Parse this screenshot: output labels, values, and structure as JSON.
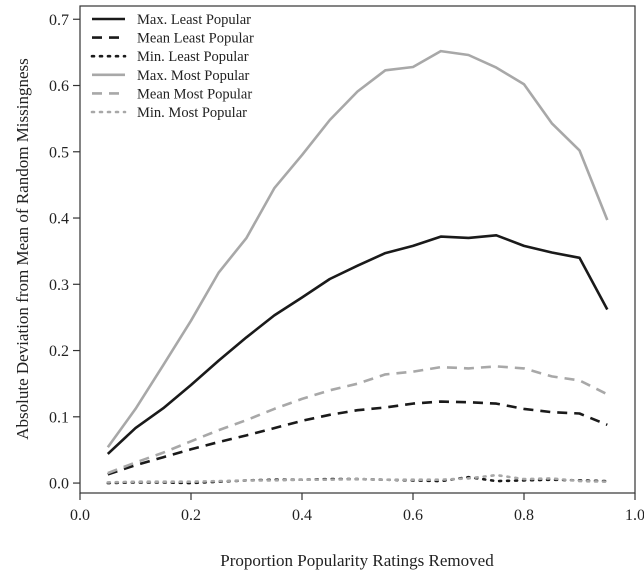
{
  "chart_data": {
    "type": "line",
    "title": "",
    "xlabel": "Proportion Popularity Ratings Removed",
    "ylabel": "Absolute Deviation from Mean of Random Missingness",
    "xlim": [
      0,
      1.0
    ],
    "ylim": [
      -0.015,
      0.72
    ],
    "x_ticks": [
      "0.0",
      "0.2",
      "0.4",
      "0.6",
      "0.8",
      "1.0"
    ],
    "y_ticks": [
      "0.0",
      "0.1",
      "0.2",
      "0.3",
      "0.4",
      "0.5",
      "0.6",
      "0.7"
    ],
    "x_tick_values": [
      0,
      0.2,
      0.4,
      0.6,
      0.8,
      1.0
    ],
    "y_tick_values": [
      0,
      0.1,
      0.2,
      0.3,
      0.4,
      0.5,
      0.6,
      0.7
    ],
    "grid": false,
    "legend_position": "top-left",
    "x": [
      0.05,
      0.1,
      0.15,
      0.2,
      0.25,
      0.3,
      0.35,
      0.4,
      0.45,
      0.5,
      0.55,
      0.6,
      0.65,
      0.7,
      0.75,
      0.8,
      0.85,
      0.9,
      0.95
    ],
    "series": [
      {
        "name": "Max. Least Popular",
        "color": "#1a1a1a",
        "dash": "solid",
        "values": [
          0.044,
          0.083,
          0.113,
          0.148,
          0.185,
          0.22,
          0.253,
          0.28,
          0.308,
          0.328,
          0.347,
          0.358,
          0.372,
          0.37,
          0.374,
          0.358,
          0.348,
          0.34,
          0.262
        ]
      },
      {
        "name": "Mean Least Popular",
        "color": "#1a1a1a",
        "dash": "dashed",
        "values": [
          0.013,
          0.027,
          0.039,
          0.051,
          0.062,
          0.072,
          0.083,
          0.094,
          0.103,
          0.11,
          0.114,
          0.12,
          0.123,
          0.122,
          0.12,
          0.112,
          0.107,
          0.105,
          0.088
        ]
      },
      {
        "name": "Min. Least Popular",
        "color": "#1a1a1a",
        "dash": "dotted",
        "values": [
          0.0,
          0.001,
          0.001,
          0.0,
          0.002,
          0.004,
          0.005,
          0.005,
          0.006,
          0.006,
          0.005,
          0.004,
          0.003,
          0.009,
          0.003,
          0.004,
          0.005,
          0.004,
          0.003
        ]
      },
      {
        "name": "Max. Most Popular",
        "color": "#a8a8a8",
        "dash": "solid",
        "values": [
          0.054,
          0.112,
          0.178,
          0.245,
          0.318,
          0.37,
          0.445,
          0.495,
          0.548,
          0.591,
          0.623,
          0.628,
          0.652,
          0.646,
          0.627,
          0.602,
          0.543,
          0.502,
          0.397
        ]
      },
      {
        "name": "Mean Most Popular",
        "color": "#a8a8a8",
        "dash": "dashed",
        "values": [
          0.015,
          0.031,
          0.046,
          0.063,
          0.08,
          0.095,
          0.112,
          0.127,
          0.14,
          0.15,
          0.164,
          0.168,
          0.175,
          0.173,
          0.176,
          0.173,
          0.161,
          0.155,
          0.134
        ]
      },
      {
        "name": "Min. Most Popular",
        "color": "#a8a8a8",
        "dash": "dotted",
        "values": [
          0.001,
          0.002,
          0.002,
          0.002,
          0.003,
          0.004,
          0.004,
          0.005,
          0.005,
          0.006,
          0.005,
          0.005,
          0.005,
          0.007,
          0.012,
          0.006,
          0.007,
          0.003,
          0.002
        ]
      }
    ]
  }
}
